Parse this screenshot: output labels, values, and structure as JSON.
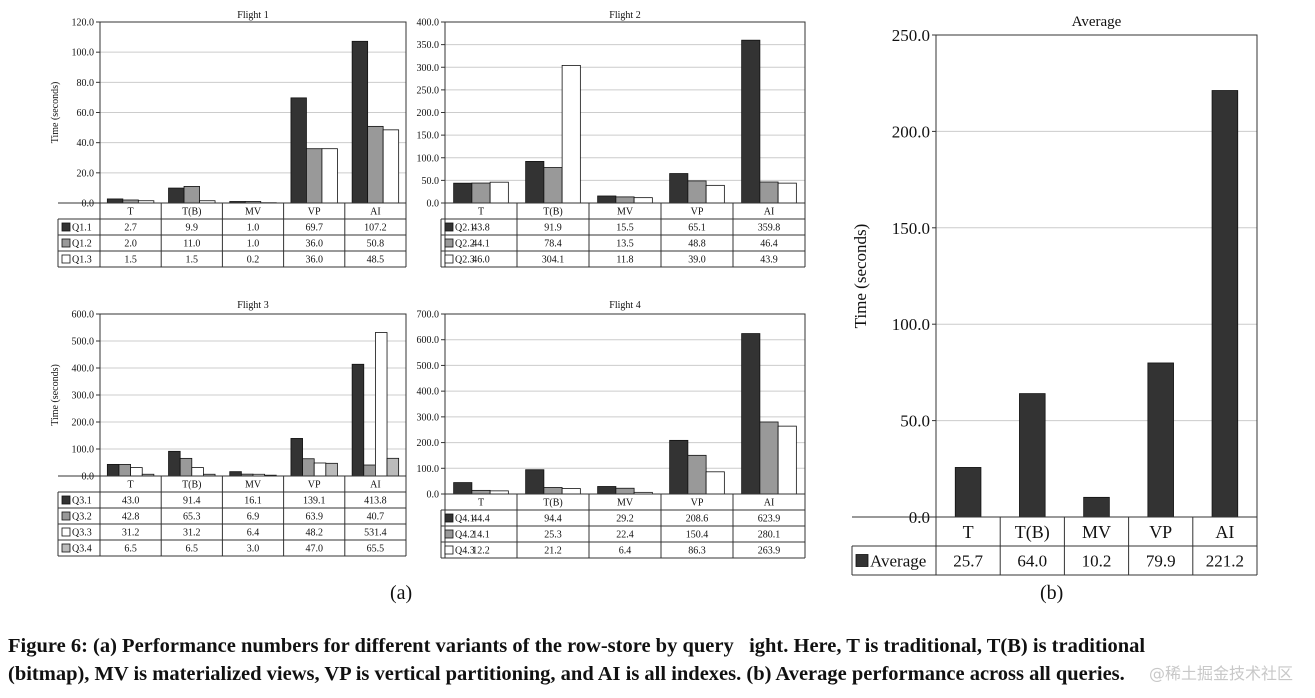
{
  "colors": {
    "series1": "#333333",
    "series2": "#999999",
    "series3": "#ffffff",
    "series4": "#bbbbbb",
    "grid": "#cccccc",
    "frame": "#333333"
  },
  "chart_data": [
    {
      "type": "bar",
      "title": "Flight 1",
      "ylabel": "Time (seconds)",
      "ylim": [
        0,
        120
      ],
      "ystep": 20,
      "yticks": [
        "0.0",
        "20.0",
        "40.0",
        "60.0",
        "80.0",
        "100.0",
        "120.0"
      ],
      "categories": [
        "T",
        "T(B)",
        "MV",
        "VP",
        "AI"
      ],
      "series": [
        {
          "name": "Q1.1",
          "values": [
            2.7,
            9.9,
            1.0,
            69.7,
            107.2
          ],
          "labels": [
            "2.7",
            "9.9",
            "1.0",
            "69.7",
            "107.2"
          ]
        },
        {
          "name": "Q1.2",
          "values": [
            2.0,
            11.0,
            1.0,
            36.0,
            50.8
          ],
          "labels": [
            "2.0",
            "11.0",
            "1.0",
            "36.0",
            "50.8"
          ]
        },
        {
          "name": "Q1.3",
          "values": [
            1.5,
            1.5,
            0.2,
            36.0,
            48.5
          ],
          "labels": [
            "1.5",
            "1.5",
            "0.2",
            "36.0",
            "48.5"
          ]
        }
      ]
    },
    {
      "type": "bar",
      "title": "Flight 2",
      "ylabel": "",
      "ylim": [
        0,
        400
      ],
      "ystep": 50,
      "yticks": [
        "0.0",
        "50.0",
        "100.0",
        "150.0",
        "200.0",
        "250.0",
        "300.0",
        "350.0",
        "400.0"
      ],
      "categories": [
        "T",
        "T(B)",
        "MV",
        "VP",
        "AI"
      ],
      "series": [
        {
          "name": "Q2.1",
          "values": [
            43.8,
            91.9,
            15.5,
            65.1,
            359.8
          ],
          "labels": [
            "43.8",
            "91.9",
            "15.5",
            "65.1",
            "359.8"
          ]
        },
        {
          "name": "Q2.2",
          "values": [
            44.1,
            78.4,
            13.5,
            48.8,
            46.4
          ],
          "labels": [
            "44.1",
            "78.4",
            "13.5",
            "48.8",
            "46.4"
          ]
        },
        {
          "name": "Q2.3",
          "values": [
            46.0,
            304.1,
            11.8,
            39.0,
            43.9
          ],
          "labels": [
            "46.0",
            "304.1",
            "11.8",
            "39.0",
            "43.9"
          ]
        }
      ]
    },
    {
      "type": "bar",
      "title": "Flight 3",
      "ylabel": "Time (seconds)",
      "ylim": [
        0,
        600
      ],
      "ystep": 100,
      "yticks": [
        "0.0",
        "100.0",
        "200.0",
        "300.0",
        "400.0",
        "500.0",
        "600.0"
      ],
      "categories": [
        "T",
        "T(B)",
        "MV",
        "VP",
        "AI"
      ],
      "series": [
        {
          "name": "Q3.1",
          "values": [
            43.0,
            91.4,
            16.1,
            139.1,
            413.8
          ],
          "labels": [
            "43.0",
            "91.4",
            "16.1",
            "139.1",
            "413.8"
          ]
        },
        {
          "name": "Q3.2",
          "values": [
            42.8,
            65.3,
            6.9,
            63.9,
            40.7
          ],
          "labels": [
            "42.8",
            "65.3",
            "6.9",
            "63.9",
            "40.7"
          ]
        },
        {
          "name": "Q3.3",
          "values": [
            31.2,
            31.2,
            6.4,
            48.2,
            531.4
          ],
          "labels": [
            "31.2",
            "31.2",
            "6.4",
            "48.2",
            "531.4"
          ]
        },
        {
          "name": "Q3.4",
          "values": [
            6.5,
            6.5,
            3.0,
            47.0,
            65.5
          ],
          "labels": [
            "6.5",
            "6.5",
            "3.0",
            "47.0",
            "65.5"
          ]
        }
      ]
    },
    {
      "type": "bar",
      "title": "Flight 4",
      "ylabel": "",
      "ylim": [
        0,
        700
      ],
      "ystep": 100,
      "yticks": [
        "0.0",
        "100.0",
        "200.0",
        "300.0",
        "400.0",
        "500.0",
        "600.0",
        "700.0"
      ],
      "categories": [
        "T",
        "T(B)",
        "MV",
        "VP",
        "AI"
      ],
      "series": [
        {
          "name": "Q4.1",
          "values": [
            44.4,
            94.4,
            29.2,
            208.6,
            623.9
          ],
          "labels": [
            "44.4",
            "94.4",
            "29.2",
            "208.6",
            "623.9"
          ]
        },
        {
          "name": "Q4.2",
          "values": [
            14.1,
            25.3,
            22.4,
            150.4,
            280.1
          ],
          "labels": [
            "14.1",
            "25.3",
            "22.4",
            "150.4",
            "280.1"
          ]
        },
        {
          "name": "Q4.3",
          "values": [
            12.2,
            21.2,
            6.4,
            86.3,
            263.9
          ],
          "labels": [
            "12.2",
            "21.2",
            "6.4",
            "86.3",
            "263.9"
          ]
        }
      ]
    },
    {
      "type": "bar",
      "title": "Average",
      "ylabel": "Time (seconds)",
      "ylim": [
        0,
        250
      ],
      "ystep": 50,
      "yticks": [
        "0.0",
        "50.0",
        "100.0",
        "150.0",
        "200.0",
        "250.0"
      ],
      "categories": [
        "T",
        "T(B)",
        "MV",
        "VP",
        "AI"
      ],
      "series": [
        {
          "name": "Average",
          "values": [
            25.7,
            64.0,
            10.2,
            79.9,
            221.2
          ],
          "labels": [
            "25.7",
            "64.0",
            "10.2",
            "79.9",
            "221.2"
          ]
        }
      ]
    }
  ],
  "panel_labels": {
    "a": "(a)",
    "b": "(b)"
  },
  "caption": {
    "line1": "Figure 6: (a) Performance numbers for different variants of the row-store by query   ight. Here, T is traditional, T(B) is traditional",
    "line2": "(bitmap), MV is materialized views, VP is vertical partitioning, and AI is all indexes. (b) Average performance across all queries."
  },
  "watermark": "@稀土掘金技术社区"
}
